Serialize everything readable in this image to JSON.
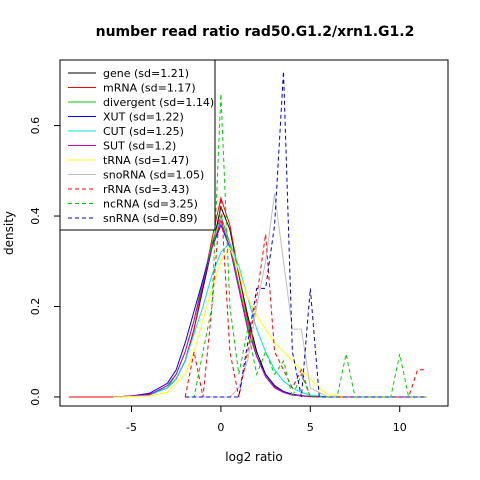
{
  "chart_data": {
    "type": "line",
    "title": "number read ratio rad50.G1.2/xrn1.G1.2",
    "xlabel": "log2 ratio",
    "ylabel": "density",
    "xlim": [
      -9,
      12.7
    ],
    "ylim": [
      -0.02,
      0.745
    ],
    "x_ticks": [
      -5,
      0,
      5,
      10
    ],
    "x_tick_labels": [
      "-5",
      "0",
      "5",
      "10"
    ],
    "y_ticks": [
      0.0,
      0.2,
      0.4,
      0.6
    ],
    "y_tick_labels": [
      "0.0",
      "0.2",
      "0.4",
      "0.6"
    ],
    "grid": false,
    "legend_position": "top-left",
    "series": [
      {
        "name": "gene (sd=1.21)",
        "color": "#000000",
        "dash": "solid",
        "x": [
          -8.5,
          -6,
          -5,
          -4,
          -3,
          -2.5,
          -2,
          -1.5,
          -1,
          -0.5,
          0,
          0.5,
          1,
          1.5,
          2,
          2.5,
          3,
          3.5,
          4,
          4.5,
          5,
          5.5,
          6,
          7,
          8,
          9,
          10,
          11.5
        ],
        "y": [
          0,
          0,
          0.002,
          0.006,
          0.02,
          0.04,
          0.08,
          0.15,
          0.24,
          0.33,
          0.42,
          0.37,
          0.27,
          0.18,
          0.1,
          0.05,
          0.025,
          0.012,
          0.006,
          0.003,
          0.001,
          0,
          0,
          0,
          0,
          0,
          0,
          0
        ]
      },
      {
        "name": "mRNA (sd=1.17)",
        "color": "#ff0000",
        "dash": "solid",
        "x": [
          -8.5,
          -6,
          -5,
          -4,
          -3,
          -2.5,
          -2,
          -1.5,
          -1,
          -0.5,
          0,
          0.5,
          1,
          1.5,
          2,
          2.5,
          3,
          3.5,
          4,
          4.5,
          5,
          5.5,
          6,
          7,
          8,
          9,
          10,
          11.5
        ],
        "y": [
          0,
          0,
          0.002,
          0.006,
          0.02,
          0.04,
          0.08,
          0.15,
          0.25,
          0.35,
          0.44,
          0.38,
          0.27,
          0.17,
          0.09,
          0.045,
          0.022,
          0.01,
          0.005,
          0.002,
          0.001,
          0,
          0,
          0,
          0,
          0,
          0,
          0
        ]
      },
      {
        "name": "divergent (sd=1.14)",
        "color": "#00cd00",
        "dash": "solid",
        "x": [
          -6,
          -4,
          -3,
          -2.5,
          -2,
          -1.5,
          -1,
          -0.5,
          0,
          0.5,
          1,
          1.5,
          2,
          2.5,
          3,
          3.5,
          4,
          5,
          6
        ],
        "y": [
          0,
          0.005,
          0.02,
          0.05,
          0.1,
          0.17,
          0.26,
          0.34,
          0.4,
          0.34,
          0.25,
          0.16,
          0.09,
          0.045,
          0.02,
          0.01,
          0.004,
          0.001,
          0
        ]
      },
      {
        "name": "XUT (sd=1.22)",
        "color": "#0000ff",
        "dash": "solid",
        "x": [
          -6,
          -5,
          -4,
          -3,
          -2.5,
          -2,
          -1.5,
          -1,
          -0.5,
          0,
          0.5,
          1,
          1.5,
          2,
          2.5,
          3,
          3.5,
          4,
          5,
          6
        ],
        "y": [
          0,
          0.002,
          0.008,
          0.03,
          0.06,
          0.12,
          0.19,
          0.26,
          0.33,
          0.38,
          0.33,
          0.24,
          0.15,
          0.09,
          0.05,
          0.025,
          0.012,
          0.005,
          0.001,
          0
        ]
      },
      {
        "name": "CUT (sd=1.25)",
        "color": "#00e5e5",
        "dash": "solid",
        "x": [
          -6,
          -4,
          -3,
          -2.5,
          -2,
          -1.5,
          -1,
          -0.5,
          0,
          0.5,
          1,
          1.5,
          2,
          2.5,
          3,
          3.5,
          4,
          4.5,
          5,
          6
        ],
        "y": [
          0,
          0.004,
          0.02,
          0.04,
          0.08,
          0.14,
          0.2,
          0.27,
          0.32,
          0.34,
          0.29,
          0.22,
          0.15,
          0.1,
          0.06,
          0.035,
          0.02,
          0.01,
          0.004,
          0
        ]
      },
      {
        "name": "SUT (sd=1.2)",
        "color": "#cc00cc",
        "dash": "solid",
        "x": [
          -6,
          -4,
          -3,
          -2.5,
          -2,
          -1.5,
          -1,
          -0.5,
          0,
          0.5,
          1,
          1.5,
          2,
          2.5,
          3,
          3.5,
          4,
          5,
          6
        ],
        "y": [
          0,
          0.005,
          0.025,
          0.05,
          0.1,
          0.17,
          0.25,
          0.33,
          0.39,
          0.33,
          0.24,
          0.15,
          0.09,
          0.045,
          0.02,
          0.01,
          0.004,
          0.001,
          0
        ]
      },
      {
        "name": "tRNA (sd=1.47)",
        "color": "#ffff00",
        "dash": "solid",
        "x": [
          -6,
          -4,
          -3,
          -2,
          -1.5,
          -1,
          -0.5,
          0,
          0.5,
          1,
          1.5,
          2,
          2.5,
          3,
          3.5,
          4,
          4.5,
          5,
          5.5,
          6,
          7
        ],
        "y": [
          0,
          0.002,
          0.01,
          0.05,
          0.1,
          0.17,
          0.24,
          0.3,
          0.33,
          0.28,
          0.22,
          0.18,
          0.15,
          0.12,
          0.1,
          0.08,
          0.06,
          0.04,
          0.02,
          0.005,
          0
        ]
      },
      {
        "name": "snoRNA (sd=1.05)",
        "color": "#bebebe",
        "dash": "solid",
        "x": [
          -2,
          0,
          0.5,
          1,
          1.5,
          2,
          2.5,
          3,
          3.5,
          4,
          4.5,
          5,
          6
        ],
        "y": [
          0,
          0,
          0,
          0.02,
          0.08,
          0.2,
          0.3,
          0.45,
          0.3,
          0.15,
          0.15,
          0.02,
          0
        ]
      },
      {
        "name": "rRNA (sd=3.43)",
        "color": "#ff0000",
        "dash": "dashed",
        "x": [
          -2,
          -1.5,
          -1,
          -0.5,
          0,
          0.5,
          1,
          1.5,
          2,
          2.5,
          3,
          3.5,
          4,
          4.5,
          5,
          6,
          7,
          8,
          9,
          10,
          10.5,
          11,
          11.5
        ],
        "y": [
          0,
          0.1,
          0,
          0.2,
          0.44,
          0.1,
          0,
          0.1,
          0.22,
          0.36,
          0.1,
          0.06,
          0.02,
          0.06,
          0,
          0,
          0,
          0,
          0,
          0,
          0,
          0.06,
          0.06
        ]
      },
      {
        "name": "ncRNA (sd=3.25)",
        "color": "#00cd00",
        "dash": "dashed",
        "x": [
          -2,
          -1.5,
          -1,
          -0.5,
          0,
          0.5,
          1,
          1.5,
          2,
          2.5,
          3,
          3.5,
          4,
          4.5,
          5,
          5.5,
          6,
          6.5,
          7,
          7.5,
          8,
          9,
          9.5,
          10,
          10.5,
          11,
          11.5
        ],
        "y": [
          0,
          0,
          0.1,
          0.2,
          0.67,
          0.2,
          0.05,
          0.15,
          0.05,
          0.1,
          0.05,
          0.08,
          0,
          0.05,
          0,
          0,
          0,
          0,
          0.095,
          0,
          0,
          0,
          0,
          0.095,
          0,
          0,
          0
        ]
      },
      {
        "name": "snRNA (sd=0.89)",
        "color": "#0000cd",
        "dash": "dashed",
        "x": [
          -2,
          0,
          1,
          2,
          2.5,
          3,
          3.5,
          4,
          4.5,
          5,
          5.5,
          6,
          7,
          9,
          10,
          11.5
        ],
        "y": [
          0,
          0,
          0,
          0.24,
          0.24,
          0.38,
          0.72,
          0.1,
          0,
          0.24,
          0,
          0,
          0,
          0,
          0,
          0
        ]
      }
    ]
  }
}
